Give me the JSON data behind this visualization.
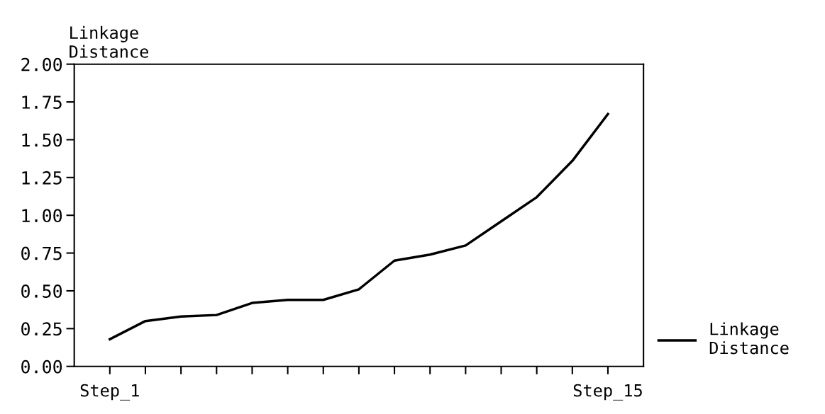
{
  "chart_data": {
    "type": "line",
    "ylabel": "Linkage\nDistance",
    "categories": [
      "Step_1",
      null,
      null,
      null,
      null,
      null,
      null,
      null,
      null,
      null,
      null,
      null,
      null,
      null,
      "Step_15"
    ],
    "series": [
      {
        "name": "Linkage\nDistance",
        "color": "#000000",
        "values": [
          0.18,
          0.3,
          0.33,
          0.34,
          0.42,
          0.44,
          0.44,
          0.51,
          0.7,
          0.74,
          0.8,
          0.96,
          1.12,
          1.36,
          1.67
        ]
      }
    ],
    "ylim": [
      0,
      2
    ],
    "yticks": [
      {
        "value": 0,
        "label": "0.00"
      },
      {
        "value": 0.25,
        "label": "0.25"
      },
      {
        "value": 0.5,
        "label": "0.50"
      },
      {
        "value": 0.75,
        "label": "0.75"
      },
      {
        "value": 1,
        "label": "1.00"
      },
      {
        "value": 1.25,
        "label": "1.25"
      },
      {
        "value": 1.5,
        "label": "1.50"
      },
      {
        "value": 1.75,
        "label": "1.75"
      },
      {
        "value": 2,
        "label": "2.00"
      }
    ],
    "grid": false,
    "legend": "bottom right",
    "marker": "none",
    "line_style": "solid"
  }
}
